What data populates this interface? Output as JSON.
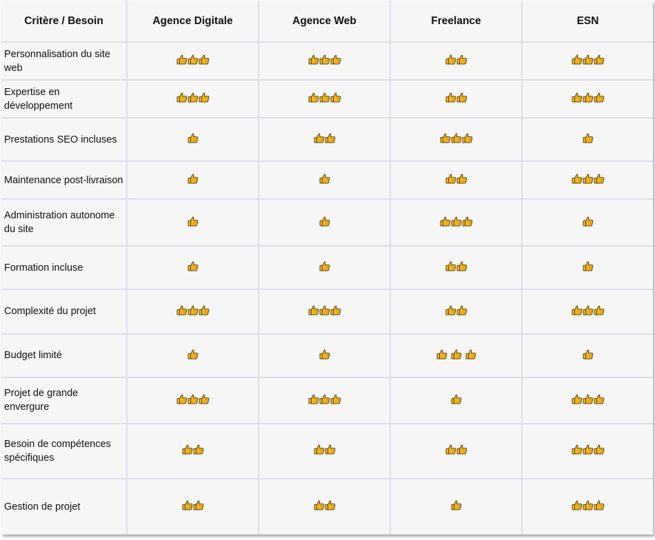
{
  "table": {
    "headers": [
      "Critère / Besoin",
      "Agence Digitale",
      "Agence Web",
      "Freelance",
      "ESN"
    ],
    "icon": "thumbs-up-icon",
    "icon_color": "#f2b51c",
    "icon_outline": "#5a4414",
    "rows": [
      {
        "criterion": "Personnalisation du site web",
        "scores": [
          3,
          3,
          2,
          3
        ]
      },
      {
        "criterion": "Expertise en développement",
        "scores": [
          3,
          3,
          2,
          3
        ]
      },
      {
        "criterion": "Prestations SEO incluses",
        "scores": [
          1,
          2,
          3,
          1
        ]
      },
      {
        "criterion": "Maintenance post-livraison",
        "scores": [
          1,
          1,
          2,
          3
        ]
      },
      {
        "criterion": "Administration autonome du site",
        "scores": [
          1,
          1,
          3,
          1
        ]
      },
      {
        "criterion": "Formation incluse",
        "scores": [
          1,
          1,
          2,
          1
        ]
      },
      {
        "criterion": "Complexité du projet",
        "scores": [
          3,
          3,
          2,
          3
        ]
      },
      {
        "criterion": "Budget limité",
        "scores": [
          1,
          1,
          3,
          1
        ]
      },
      {
        "criterion": "Projet de grande envergure",
        "scores": [
          3,
          3,
          1,
          3
        ]
      },
      {
        "criterion": "Besoin de compétences spécifiques",
        "scores": [
          2,
          2,
          2,
          3
        ]
      },
      {
        "criterion": "Gestion de projet",
        "scores": [
          2,
          2,
          1,
          3
        ]
      }
    ]
  }
}
